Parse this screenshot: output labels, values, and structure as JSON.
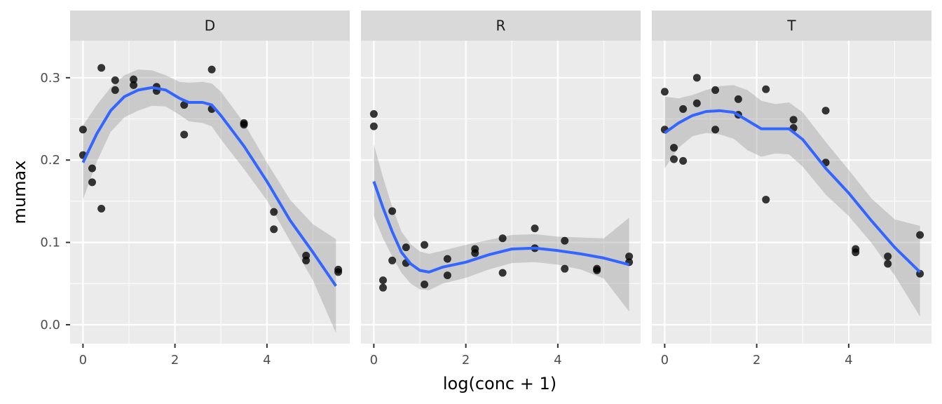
{
  "chart_data": {
    "type": "scatter",
    "xlabel": "log(conc + 1)",
    "ylabel": "mumax",
    "xlim": [
      -0.28,
      5.8
    ],
    "ylim": [
      -0.023,
      0.345
    ],
    "x_ticks": [
      0,
      2,
      4
    ],
    "x_tick_labels": [
      "0",
      "2",
      "4"
    ],
    "y_ticks": [
      0.0,
      0.1,
      0.2,
      0.3
    ],
    "y_tick_labels": [
      "0.0",
      "0.1",
      "0.2",
      "0.3"
    ],
    "grid": true,
    "legend": "none",
    "colors": {
      "panel_bg": "#ebebeb",
      "strip_bg": "#d9d9d9",
      "grid": "#ffffff",
      "points": "#000000",
      "smooth_line": "#3366ff",
      "ribbon": "#999999"
    },
    "panels": [
      {
        "label": "D",
        "points": [
          [
            0.0,
            0.237
          ],
          [
            0.0,
            0.206
          ],
          [
            0.2,
            0.19
          ],
          [
            0.2,
            0.173
          ],
          [
            0.4,
            0.141
          ],
          [
            0.4,
            0.312
          ],
          [
            0.7,
            0.297
          ],
          [
            0.7,
            0.285
          ],
          [
            1.1,
            0.298
          ],
          [
            1.1,
            0.291
          ],
          [
            1.6,
            0.289
          ],
          [
            1.6,
            0.284
          ],
          [
            2.2,
            0.267
          ],
          [
            2.2,
            0.231
          ],
          [
            2.8,
            0.31
          ],
          [
            2.8,
            0.262
          ],
          [
            3.5,
            0.245
          ],
          [
            3.5,
            0.243
          ],
          [
            4.15,
            0.137
          ],
          [
            4.15,
            0.116
          ],
          [
            4.85,
            0.084
          ],
          [
            4.85,
            0.078
          ],
          [
            5.55,
            0.067
          ],
          [
            5.55,
            0.064
          ]
        ],
        "smooth": [
          [
            0.0,
            0.197
          ],
          [
            0.3,
            0.232
          ],
          [
            0.6,
            0.26
          ],
          [
            0.9,
            0.277
          ],
          [
            1.2,
            0.285
          ],
          [
            1.5,
            0.288
          ],
          [
            1.8,
            0.285
          ],
          [
            2.1,
            0.275
          ],
          [
            2.3,
            0.27
          ],
          [
            2.6,
            0.27
          ],
          [
            2.8,
            0.267
          ],
          [
            3.0,
            0.254
          ],
          [
            3.5,
            0.217
          ],
          [
            4.0,
            0.174
          ],
          [
            4.5,
            0.127
          ],
          [
            5.0,
            0.088
          ],
          [
            5.5,
            0.047
          ]
        ],
        "upper": [
          [
            0.0,
            0.242
          ],
          [
            0.3,
            0.267
          ],
          [
            0.6,
            0.288
          ],
          [
            0.9,
            0.303
          ],
          [
            1.2,
            0.31
          ],
          [
            1.5,
            0.309
          ],
          [
            1.8,
            0.303
          ],
          [
            2.1,
            0.295
          ],
          [
            2.3,
            0.294
          ],
          [
            2.6,
            0.295
          ],
          [
            2.8,
            0.293
          ],
          [
            3.0,
            0.283
          ],
          [
            3.5,
            0.245
          ],
          [
            4.0,
            0.197
          ],
          [
            4.5,
            0.152
          ],
          [
            5.0,
            0.122
          ],
          [
            5.5,
            0.104
          ]
        ],
        "lower": [
          [
            0.0,
            0.152
          ],
          [
            0.3,
            0.198
          ],
          [
            0.6,
            0.234
          ],
          [
            0.9,
            0.252
          ],
          [
            1.2,
            0.26
          ],
          [
            1.5,
            0.266
          ],
          [
            1.8,
            0.265
          ],
          [
            2.1,
            0.255
          ],
          [
            2.3,
            0.247
          ],
          [
            2.6,
            0.245
          ],
          [
            2.8,
            0.241
          ],
          [
            3.0,
            0.225
          ],
          [
            3.5,
            0.189
          ],
          [
            4.0,
            0.151
          ],
          [
            4.5,
            0.102
          ],
          [
            5.0,
            0.054
          ],
          [
            5.5,
            -0.01
          ]
        ]
      },
      {
        "label": "R",
        "points": [
          [
            0.0,
            0.256
          ],
          [
            0.0,
            0.241
          ],
          [
            0.2,
            0.054
          ],
          [
            0.2,
            0.045
          ],
          [
            0.4,
            0.138
          ],
          [
            0.4,
            0.078
          ],
          [
            0.7,
            0.094
          ],
          [
            0.7,
            0.075
          ],
          [
            1.1,
            0.097
          ],
          [
            1.1,
            0.049
          ],
          [
            1.6,
            0.08
          ],
          [
            1.6,
            0.06
          ],
          [
            2.2,
            0.092
          ],
          [
            2.2,
            0.087
          ],
          [
            2.8,
            0.105
          ],
          [
            2.8,
            0.063
          ],
          [
            3.5,
            0.117
          ],
          [
            3.5,
            0.093
          ],
          [
            4.15,
            0.102
          ],
          [
            4.15,
            0.068
          ],
          [
            4.85,
            0.068
          ],
          [
            4.85,
            0.066
          ],
          [
            5.55,
            0.083
          ],
          [
            5.55,
            0.076
          ]
        ],
        "smooth": [
          [
            0.0,
            0.174
          ],
          [
            0.2,
            0.142
          ],
          [
            0.4,
            0.113
          ],
          [
            0.6,
            0.088
          ],
          [
            0.8,
            0.074
          ],
          [
            1.0,
            0.066
          ],
          [
            1.2,
            0.064
          ],
          [
            1.5,
            0.07
          ],
          [
            2.0,
            0.076
          ],
          [
            2.5,
            0.085
          ],
          [
            3.0,
            0.092
          ],
          [
            3.5,
            0.093
          ],
          [
            4.0,
            0.09
          ],
          [
            4.5,
            0.086
          ],
          [
            5.0,
            0.081
          ],
          [
            5.55,
            0.073
          ]
        ],
        "upper": [
          [
            0.0,
            0.219
          ],
          [
            0.2,
            0.179
          ],
          [
            0.4,
            0.143
          ],
          [
            0.6,
            0.113
          ],
          [
            0.8,
            0.098
          ],
          [
            1.0,
            0.089
          ],
          [
            1.2,
            0.086
          ],
          [
            1.5,
            0.09
          ],
          [
            2.0,
            0.097
          ],
          [
            2.5,
            0.103
          ],
          [
            3.0,
            0.109
          ],
          [
            3.5,
            0.11
          ],
          [
            4.0,
            0.107
          ],
          [
            4.5,
            0.106
          ],
          [
            5.0,
            0.105
          ],
          [
            5.55,
            0.13
          ]
        ],
        "lower": [
          [
            0.0,
            0.132
          ],
          [
            0.2,
            0.105
          ],
          [
            0.4,
            0.083
          ],
          [
            0.6,
            0.063
          ],
          [
            0.8,
            0.05
          ],
          [
            1.0,
            0.043
          ],
          [
            1.2,
            0.042
          ],
          [
            1.5,
            0.05
          ],
          [
            2.0,
            0.057
          ],
          [
            2.5,
            0.067
          ],
          [
            3.0,
            0.075
          ],
          [
            3.5,
            0.076
          ],
          [
            4.0,
            0.073
          ],
          [
            4.5,
            0.067
          ],
          [
            5.0,
            0.056
          ],
          [
            5.55,
            0.016
          ]
        ]
      },
      {
        "label": "T",
        "points": [
          [
            0.0,
            0.283
          ],
          [
            0.0,
            0.237
          ],
          [
            0.2,
            0.215
          ],
          [
            0.2,
            0.201
          ],
          [
            0.4,
            0.262
          ],
          [
            0.4,
            0.199
          ],
          [
            0.7,
            0.3
          ],
          [
            0.7,
            0.269
          ],
          [
            1.1,
            0.285
          ],
          [
            1.1,
            0.237
          ],
          [
            1.6,
            0.274
          ],
          [
            1.6,
            0.255
          ],
          [
            2.2,
            0.286
          ],
          [
            2.2,
            0.152
          ],
          [
            2.8,
            0.249
          ],
          [
            2.8,
            0.239
          ],
          [
            3.5,
            0.26
          ],
          [
            3.5,
            0.197
          ],
          [
            4.15,
            0.092
          ],
          [
            4.15,
            0.088
          ],
          [
            4.85,
            0.083
          ],
          [
            4.85,
            0.074
          ],
          [
            5.55,
            0.109
          ],
          [
            5.55,
            0.062
          ]
        ],
        "smooth": [
          [
            0.0,
            0.233
          ],
          [
            0.3,
            0.245
          ],
          [
            0.6,
            0.254
          ],
          [
            0.9,
            0.259
          ],
          [
            1.2,
            0.26
          ],
          [
            1.5,
            0.258
          ],
          [
            1.8,
            0.248
          ],
          [
            2.1,
            0.238
          ],
          [
            2.4,
            0.238
          ],
          [
            2.7,
            0.238
          ],
          [
            3.0,
            0.225
          ],
          [
            3.5,
            0.19
          ],
          [
            4.0,
            0.16
          ],
          [
            4.5,
            0.126
          ],
          [
            5.0,
            0.094
          ],
          [
            5.55,
            0.064
          ]
        ],
        "upper": [
          [
            0.0,
            0.277
          ],
          [
            0.3,
            0.275
          ],
          [
            0.6,
            0.279
          ],
          [
            0.9,
            0.285
          ],
          [
            1.2,
            0.29
          ],
          [
            1.5,
            0.291
          ],
          [
            1.8,
            0.285
          ],
          [
            2.1,
            0.272
          ],
          [
            2.4,
            0.268
          ],
          [
            2.7,
            0.27
          ],
          [
            3.0,
            0.258
          ],
          [
            3.5,
            0.222
          ],
          [
            4.0,
            0.188
          ],
          [
            4.5,
            0.153
          ],
          [
            5.0,
            0.128
          ],
          [
            5.55,
            0.12
          ]
        ],
        "lower": [
          [
            0.0,
            0.19
          ],
          [
            0.3,
            0.215
          ],
          [
            0.6,
            0.229
          ],
          [
            0.9,
            0.233
          ],
          [
            1.2,
            0.231
          ],
          [
            1.5,
            0.226
          ],
          [
            1.8,
            0.212
          ],
          [
            2.1,
            0.204
          ],
          [
            2.4,
            0.208
          ],
          [
            2.7,
            0.207
          ],
          [
            3.0,
            0.192
          ],
          [
            3.5,
            0.158
          ],
          [
            4.0,
            0.132
          ],
          [
            4.5,
            0.099
          ],
          [
            5.0,
            0.06
          ],
          [
            5.55,
            0.01
          ]
        ]
      }
    ]
  }
}
